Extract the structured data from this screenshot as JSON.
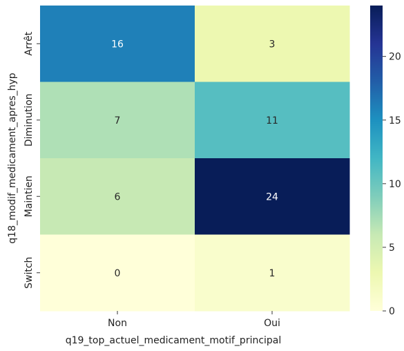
{
  "chart_data": {
    "type": "heatmap",
    "xlabel": "q19_top_actuel_medicament_motif_principal",
    "ylabel": "q18_modif_medicament_apres_hyp",
    "x_categories": [
      "Non",
      "Oui"
    ],
    "y_categories": [
      "Arrêt",
      "Diminution",
      "Maintien",
      "Switch"
    ],
    "values": [
      [
        16,
        3
      ],
      [
        7,
        11
      ],
      [
        6,
        24
      ],
      [
        0,
        1
      ]
    ],
    "colorbar": {
      "colormap": "YlGnBu",
      "min": 0,
      "max": 24,
      "ticks": [
        0,
        5,
        10,
        15,
        20
      ]
    },
    "colormap_stops": [
      "#ffffd9",
      "#edf8b1",
      "#c7e9b4",
      "#7fcdbb",
      "#41b6c4",
      "#1d91c0",
      "#225ea8",
      "#253494",
      "#081d58"
    ]
  }
}
